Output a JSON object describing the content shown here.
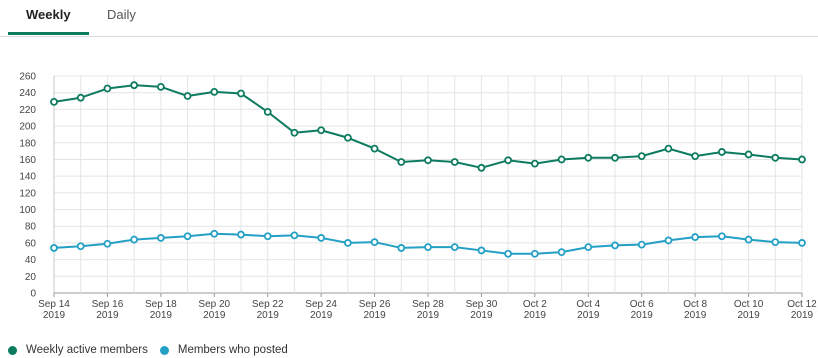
{
  "tabs": [
    {
      "label": "Weekly",
      "active": true
    },
    {
      "label": "Daily",
      "active": false
    }
  ],
  "colors": {
    "accent": "#0c7b5f",
    "series1": "#0c7b5f",
    "series2": "#25a0c5"
  },
  "chart_data": {
    "type": "line",
    "ylim": [
      0,
      260
    ],
    "yticks": [
      0,
      20,
      40,
      60,
      80,
      100,
      120,
      140,
      160,
      180,
      200,
      220,
      240,
      260
    ],
    "grid": true,
    "legend_position": "bottom-left",
    "x": [
      "Sep 14 2019",
      "Sep 15 2019",
      "Sep 16 2019",
      "Sep 17 2019",
      "Sep 18 2019",
      "Sep 19 2019",
      "Sep 20 2019",
      "Sep 21 2019",
      "Sep 22 2019",
      "Sep 23 2019",
      "Sep 24 2019",
      "Sep 25 2019",
      "Sep 26 2019",
      "Sep 27 2019",
      "Sep 28 2019",
      "Sep 29 2019",
      "Sep 30 2019",
      "Oct 1 2019",
      "Oct 2 2019",
      "Oct 3 2019",
      "Oct 4 2019",
      "Oct 5 2019",
      "Oct 6 2019",
      "Oct 7 2019",
      "Oct 8 2019",
      "Oct 9 2019",
      "Oct 10 2019",
      "Oct 11 2019",
      "Oct 12 2019"
    ],
    "xtick_labels": [
      [
        "Sep 14",
        "2019"
      ],
      [
        "Sep 16",
        "2019"
      ],
      [
        "Sep 18",
        "2019"
      ],
      [
        "Sep 20",
        "2019"
      ],
      [
        "Sep 22",
        "2019"
      ],
      [
        "Sep 24",
        "2019"
      ],
      [
        "Sep 26",
        "2019"
      ],
      [
        "Sep 28",
        "2019"
      ],
      [
        "Sep 30",
        "2019"
      ],
      [
        "Oct 2",
        "2019"
      ],
      [
        "Oct 4",
        "2019"
      ],
      [
        "Oct 6",
        "2019"
      ],
      [
        "Oct 8",
        "2019"
      ],
      [
        "Oct 10",
        "2019"
      ],
      [
        "Oct 12",
        "2019"
      ]
    ],
    "series": [
      {
        "name": "Weekly active members",
        "color": "#0c7b5f",
        "values": [
          229,
          234,
          245,
          249,
          247,
          236,
          241,
          239,
          217,
          192,
          195,
          186,
          173,
          157,
          159,
          157,
          150,
          159,
          155,
          160,
          162,
          162,
          164,
          173,
          164,
          169,
          166,
          162,
          160
        ]
      },
      {
        "name": "Members who posted",
        "color": "#25a0c5",
        "values": [
          54,
          56,
          59,
          64,
          66,
          68,
          71,
          70,
          68,
          69,
          66,
          60,
          61,
          54,
          55,
          55,
          51,
          47,
          47,
          49,
          55,
          57,
          58,
          63,
          67,
          68,
          64,
          61,
          60
        ]
      }
    ]
  }
}
